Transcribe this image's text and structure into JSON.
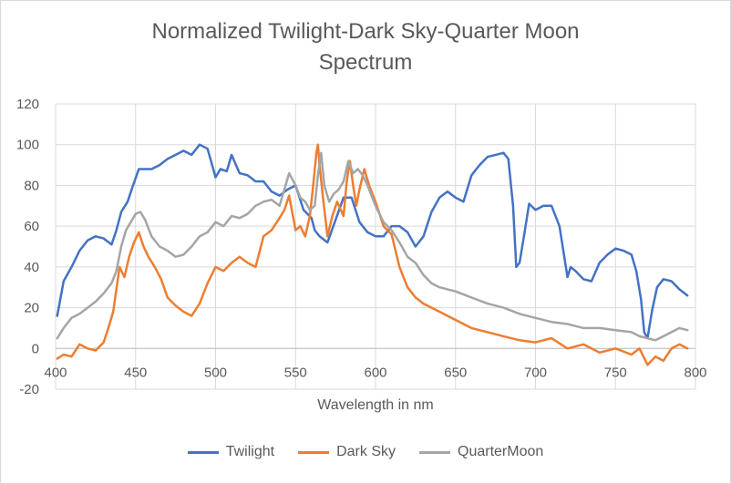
{
  "chart_data": {
    "type": "line",
    "title_line1": "Normalized Twilight-Dark Sky-Quarter Moon",
    "title_line2": "Spectrum",
    "xlabel": "Wavelength in nm",
    "ylabel": "",
    "xlim": [
      400,
      800
    ],
    "ylim": [
      -20,
      120
    ],
    "xticks": [
      400,
      450,
      500,
      550,
      600,
      650,
      700,
      750,
      800
    ],
    "yticks": [
      -20,
      0,
      20,
      40,
      60,
      80,
      100,
      120
    ],
    "grid": true,
    "legend": "bottom",
    "series": [
      {
        "name": "Twilight",
        "color": "#4472C4",
        "x": [
          401,
          405,
          410,
          415,
          420,
          425,
          430,
          435,
          438,
          441,
          445,
          448,
          452,
          455,
          460,
          465,
          470,
          475,
          480,
          485,
          490,
          495,
          500,
          503,
          507,
          510,
          515,
          520,
          525,
          530,
          535,
          540,
          545,
          550,
          555,
          560,
          562,
          565,
          570,
          575,
          580,
          585,
          590,
          595,
          600,
          605,
          610,
          615,
          620,
          625,
          630,
          635,
          640,
          645,
          650,
          655,
          660,
          665,
          670,
          675,
          680,
          683,
          686,
          688,
          690,
          693,
          696,
          700,
          705,
          710,
          715,
          720,
          722,
          725,
          730,
          735,
          740,
          745,
          750,
          755,
          760,
          763,
          766,
          768,
          770,
          773,
          776,
          780,
          785,
          790,
          795
        ],
        "values": [
          16,
          33,
          40,
          48,
          53,
          55,
          54,
          51,
          58,
          67,
          72,
          79,
          88,
          88,
          88,
          90,
          93,
          95,
          97,
          95,
          100,
          98,
          84,
          88,
          87,
          95,
          86,
          85,
          82,
          82,
          77,
          75,
          78,
          80,
          68,
          64,
          58,
          55,
          52,
          63,
          74,
          74,
          62,
          57,
          55,
          55,
          60,
          60,
          57,
          50,
          55,
          67,
          74,
          77,
          74,
          72,
          85,
          90,
          94,
          95,
          96,
          93,
          70,
          40,
          42,
          56,
          71,
          68,
          70,
          70,
          60,
          35,
          40,
          38,
          34,
          33,
          42,
          46,
          49,
          48,
          46,
          38,
          24,
          8,
          5,
          19,
          30,
          34,
          33,
          29,
          26
        ]
      },
      {
        "name": "Dark Sky",
        "color": "#ED7D31",
        "x": [
          401,
          405,
          410,
          415,
          420,
          425,
          430,
          433,
          436,
          440,
          443,
          446,
          449,
          452,
          455,
          458,
          462,
          466,
          470,
          475,
          480,
          485,
          490,
          495,
          500,
          505,
          510,
          515,
          520,
          525,
          530,
          535,
          540,
          543,
          546,
          550,
          553,
          556,
          559,
          561,
          563,
          564,
          565,
          567,
          570,
          573,
          576,
          580,
          582,
          584,
          586,
          588,
          590,
          593,
          596,
          600,
          605,
          610,
          615,
          620,
          625,
          630,
          640,
          650,
          660,
          670,
          680,
          690,
          700,
          710,
          720,
          730,
          740,
          750,
          760,
          765,
          770,
          775,
          780,
          785,
          790,
          795
        ],
        "values": [
          -5,
          -3,
          -4,
          2,
          0,
          -1,
          3,
          10,
          18,
          40,
          35,
          45,
          52,
          57,
          50,
          45,
          40,
          34,
          25,
          21,
          18,
          16,
          22,
          32,
          40,
          38,
          42,
          45,
          42,
          40,
          55,
          58,
          64,
          68,
          75,
          58,
          60,
          55,
          65,
          80,
          96,
          100,
          90,
          75,
          55,
          65,
          72,
          65,
          82,
          92,
          80,
          70,
          78,
          88,
          80,
          72,
          60,
          56,
          40,
          30,
          25,
          22,
          18,
          14,
          10,
          8,
          6,
          4,
          3,
          5,
          0,
          2,
          -2,
          0,
          -3,
          0,
          -8,
          -4,
          -6,
          0,
          2,
          0
        ]
      },
      {
        "name": "QuarterMoon",
        "color": "#A5A5A5",
        "x": [
          401,
          405,
          410,
          415,
          420,
          425,
          430,
          435,
          438,
          441,
          444,
          447,
          450,
          453,
          456,
          460,
          465,
          470,
          475,
          480,
          485,
          490,
          495,
          500,
          505,
          510,
          515,
          520,
          525,
          530,
          535,
          540,
          543,
          546,
          550,
          553,
          556,
          559,
          562,
          564,
          566,
          568,
          571,
          574,
          577,
          580,
          583,
          586,
          589,
          592,
          595,
          600,
          605,
          610,
          615,
          620,
          625,
          630,
          635,
          640,
          650,
          660,
          670,
          680,
          690,
          700,
          710,
          720,
          730,
          740,
          750,
          760,
          765,
          770,
          775,
          780,
          785,
          790,
          795
        ],
        "values": [
          5,
          10,
          15,
          17,
          20,
          23,
          27,
          32,
          38,
          50,
          58,
          62,
          66,
          67,
          63,
          55,
          50,
          48,
          45,
          46,
          50,
          55,
          57,
          62,
          60,
          65,
          64,
          66,
          70,
          72,
          73,
          70,
          78,
          86,
          80,
          74,
          72,
          68,
          70,
          85,
          96,
          80,
          72,
          76,
          78,
          82,
          92,
          86,
          88,
          85,
          80,
          70,
          62,
          58,
          52,
          45,
          42,
          36,
          32,
          30,
          28,
          25,
          22,
          20,
          17,
          15,
          13,
          12,
          10,
          10,
          9,
          8,
          6,
          5,
          4,
          6,
          8,
          10,
          9
        ]
      }
    ]
  }
}
